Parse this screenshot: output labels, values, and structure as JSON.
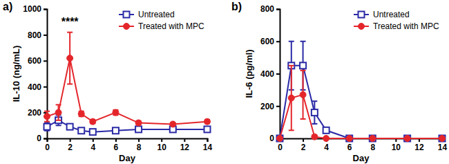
{
  "chart_data": [
    {
      "type": "line",
      "title": "a)",
      "x_label": "Day",
      "y_label": "IL-10 (ng/mL)",
      "x": [
        0,
        1,
        2,
        3,
        4,
        6,
        8,
        11,
        14
      ],
      "series": [
        {
          "name": "Untreated",
          "color": "#2a2aa6",
          "marker": "square",
          "values": [
            90,
            140,
            90,
            60,
            50,
            60,
            70,
            70,
            70
          ],
          "error": [
            30,
            40,
            20,
            15,
            10,
            10,
            15,
            15,
            20
          ]
        },
        {
          "name": "Treated with MPC",
          "color": "#e4262b",
          "marker": "circle",
          "values": [
            170,
            200,
            620,
            190,
            130,
            200,
            120,
            110,
            130
          ],
          "error": [
            40,
            60,
            200,
            20,
            15,
            20,
            15,
            10,
            15
          ]
        }
      ],
      "xlim": [
        0,
        14
      ],
      "xticks": [
        0,
        2,
        4,
        6,
        8,
        10,
        12,
        14
      ],
      "ylim": [
        0,
        1000
      ],
      "yticks": [
        0,
        200,
        400,
        600,
        800,
        1000
      ],
      "legend": "upper right",
      "annotations": [
        {
          "text": "****",
          "x": 2,
          "y": 870
        }
      ]
    },
    {
      "type": "line",
      "title": "b)",
      "x_label": "Day",
      "y_label": "IL-6 (pg/ml)",
      "x": [
        0,
        1,
        2,
        3,
        4,
        6,
        8,
        11,
        14
      ],
      "series": [
        {
          "name": "Untreated",
          "color": "#2a2aa6",
          "marker": "square",
          "values": [
            0,
            450,
            450,
            160,
            50,
            0,
            0,
            0,
            0
          ],
          "error": [
            0,
            150,
            150,
            70,
            10,
            0,
            0,
            0,
            0
          ]
        },
        {
          "name": "Treated with MPC",
          "color": "#e4262b",
          "marker": "circle",
          "values": [
            0,
            250,
            270,
            10,
            0,
            0,
            0,
            0,
            0
          ],
          "error": [
            0,
            200,
            150,
            10,
            0,
            0,
            0,
            0,
            0
          ]
        }
      ],
      "xlim": [
        0,
        14
      ],
      "xticks": [
        0,
        2,
        4,
        6,
        8,
        10,
        12,
        14
      ],
      "ylim": [
        0,
        800
      ],
      "yticks": [
        0,
        200,
        400,
        600,
        800
      ],
      "legend": "upper right"
    }
  ]
}
